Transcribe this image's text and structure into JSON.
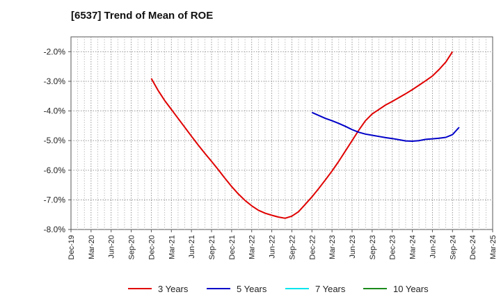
{
  "chart_data": {
    "type": "line",
    "title": "[6537]  Trend of Mean of ROE",
    "x_ticks": [
      "Dec-19",
      "Mar-20",
      "Jun-20",
      "Sep-20",
      "Dec-20",
      "Mar-21",
      "Jun-21",
      "Sep-21",
      "Dec-21",
      "Mar-22",
      "Jun-22",
      "Sep-22",
      "Dec-22",
      "Mar-23",
      "Jun-23",
      "Sep-23",
      "Dec-23",
      "Mar-24",
      "Jun-24",
      "Sep-24",
      "Dec-24",
      "Mar-25"
    ],
    "y_ticks": [
      "-2.0%",
      "-3.0%",
      "-4.0%",
      "-5.0%",
      "-6.0%",
      "-7.0%",
      "-8.0%"
    ],
    "ylim": [
      -8.0,
      -1.5
    ],
    "y_unit": "%",
    "grid": true,
    "legend_position": "bottom",
    "series": [
      {
        "name": "3 Years",
        "color": "#e00000",
        "points": [
          [
            "Dec-20",
            -2.9
          ],
          [
            "Jan-21",
            -3.3
          ],
          [
            "Feb-21",
            -3.65
          ],
          [
            "Mar-21",
            -3.95
          ],
          [
            "Apr-21",
            -4.25
          ],
          [
            "May-21",
            -4.55
          ],
          [
            "Jun-21",
            -4.85
          ],
          [
            "Jul-21",
            -5.15
          ],
          [
            "Aug-21",
            -5.43
          ],
          [
            "Sep-21",
            -5.7
          ],
          [
            "Oct-21",
            -5.98
          ],
          [
            "Nov-21",
            -6.27
          ],
          [
            "Dec-21",
            -6.55
          ],
          [
            "Jan-22",
            -6.8
          ],
          [
            "Feb-22",
            -7.02
          ],
          [
            "Mar-22",
            -7.2
          ],
          [
            "Apr-22",
            -7.35
          ],
          [
            "May-22",
            -7.45
          ],
          [
            "Jun-22",
            -7.52
          ],
          [
            "Jul-22",
            -7.58
          ],
          [
            "Aug-22",
            -7.62
          ],
          [
            "Sep-22",
            -7.55
          ],
          [
            "Oct-22",
            -7.4
          ],
          [
            "Nov-22",
            -7.15
          ],
          [
            "Dec-22",
            -6.9
          ],
          [
            "Jan-23",
            -6.62
          ],
          [
            "Feb-23",
            -6.33
          ],
          [
            "Mar-23",
            -6.03
          ],
          [
            "Apr-23",
            -5.7
          ],
          [
            "May-23",
            -5.35
          ],
          [
            "Jun-23",
            -5.0
          ],
          [
            "Jul-23",
            -4.65
          ],
          [
            "Aug-23",
            -4.33
          ],
          [
            "Sep-23",
            -4.1
          ],
          [
            "Oct-23",
            -3.95
          ],
          [
            "Nov-23",
            -3.8
          ],
          [
            "Dec-23",
            -3.68
          ],
          [
            "Jan-24",
            -3.55
          ],
          [
            "Feb-24",
            -3.42
          ],
          [
            "Mar-24",
            -3.28
          ],
          [
            "Apr-24",
            -3.13
          ],
          [
            "May-24",
            -2.98
          ],
          [
            "Jun-24",
            -2.82
          ],
          [
            "Jul-24",
            -2.6
          ],
          [
            "Aug-24",
            -2.35
          ],
          [
            "Sep-24",
            -2.0
          ]
        ]
      },
      {
        "name": "5 Years",
        "color": "#0000c8",
        "points": [
          [
            "Dec-22",
            -4.05
          ],
          [
            "Jan-23",
            -4.15
          ],
          [
            "Feb-23",
            -4.25
          ],
          [
            "Mar-23",
            -4.33
          ],
          [
            "Apr-23",
            -4.42
          ],
          [
            "May-23",
            -4.52
          ],
          [
            "Jun-23",
            -4.63
          ],
          [
            "Jul-23",
            -4.72
          ],
          [
            "Aug-23",
            -4.78
          ],
          [
            "Sep-23",
            -4.82
          ],
          [
            "Oct-23",
            -4.86
          ],
          [
            "Nov-23",
            -4.9
          ],
          [
            "Dec-23",
            -4.93
          ],
          [
            "Jan-24",
            -4.97
          ],
          [
            "Feb-24",
            -5.01
          ],
          [
            "Mar-24",
            -5.02
          ],
          [
            "Apr-24",
            -5.0
          ],
          [
            "May-24",
            -4.96
          ],
          [
            "Jun-24",
            -4.94
          ],
          [
            "Jul-24",
            -4.92
          ],
          [
            "Aug-24",
            -4.89
          ],
          [
            "Sep-24",
            -4.8
          ],
          [
            "Oct-24",
            -4.55
          ]
        ]
      },
      {
        "name": "7 Years",
        "color": "#00e5ee",
        "points": []
      },
      {
        "name": "10 Years",
        "color": "#1a8a1a",
        "points": []
      }
    ]
  }
}
